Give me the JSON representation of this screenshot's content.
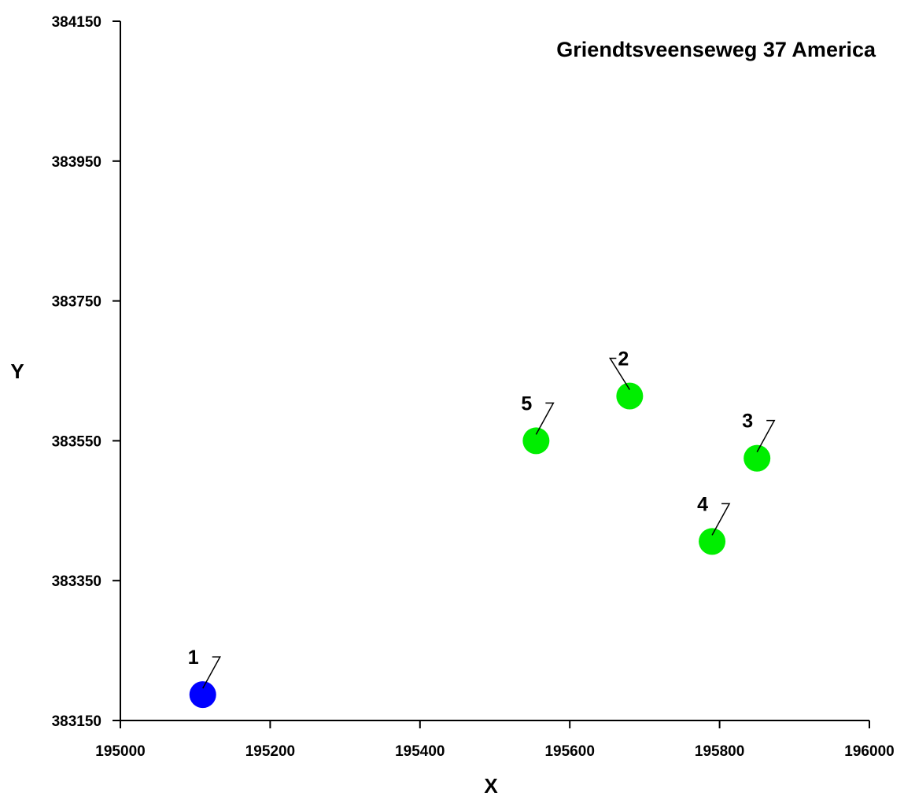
{
  "chart_data": {
    "type": "scatter",
    "title": "Griendtsveenseweg 37 America",
    "xlabel": "X",
    "ylabel": "Y",
    "xlim": [
      195000,
      196000
    ],
    "ylim": [
      383150,
      384150
    ],
    "xticks": [
      195000,
      195200,
      195400,
      195600,
      195800,
      196000
    ],
    "yticks": [
      383150,
      383350,
      383550,
      383750,
      383950,
      384150
    ],
    "grid": false,
    "points": [
      {
        "label": "1",
        "x": 195110,
        "y": 383187,
        "color": "#0000ff",
        "label_side": "right"
      },
      {
        "label": "2",
        "x": 195680,
        "y": 383614,
        "color": "#00ee00",
        "label_side": "left"
      },
      {
        "label": "3",
        "x": 195850,
        "y": 383525,
        "color": "#00ee00",
        "label_side": "right"
      },
      {
        "label": "4",
        "x": 195790,
        "y": 383406,
        "color": "#00ee00",
        "label_side": "right"
      },
      {
        "label": "5",
        "x": 195555,
        "y": 383550,
        "color": "#00ee00",
        "label_side": "right"
      }
    ]
  }
}
